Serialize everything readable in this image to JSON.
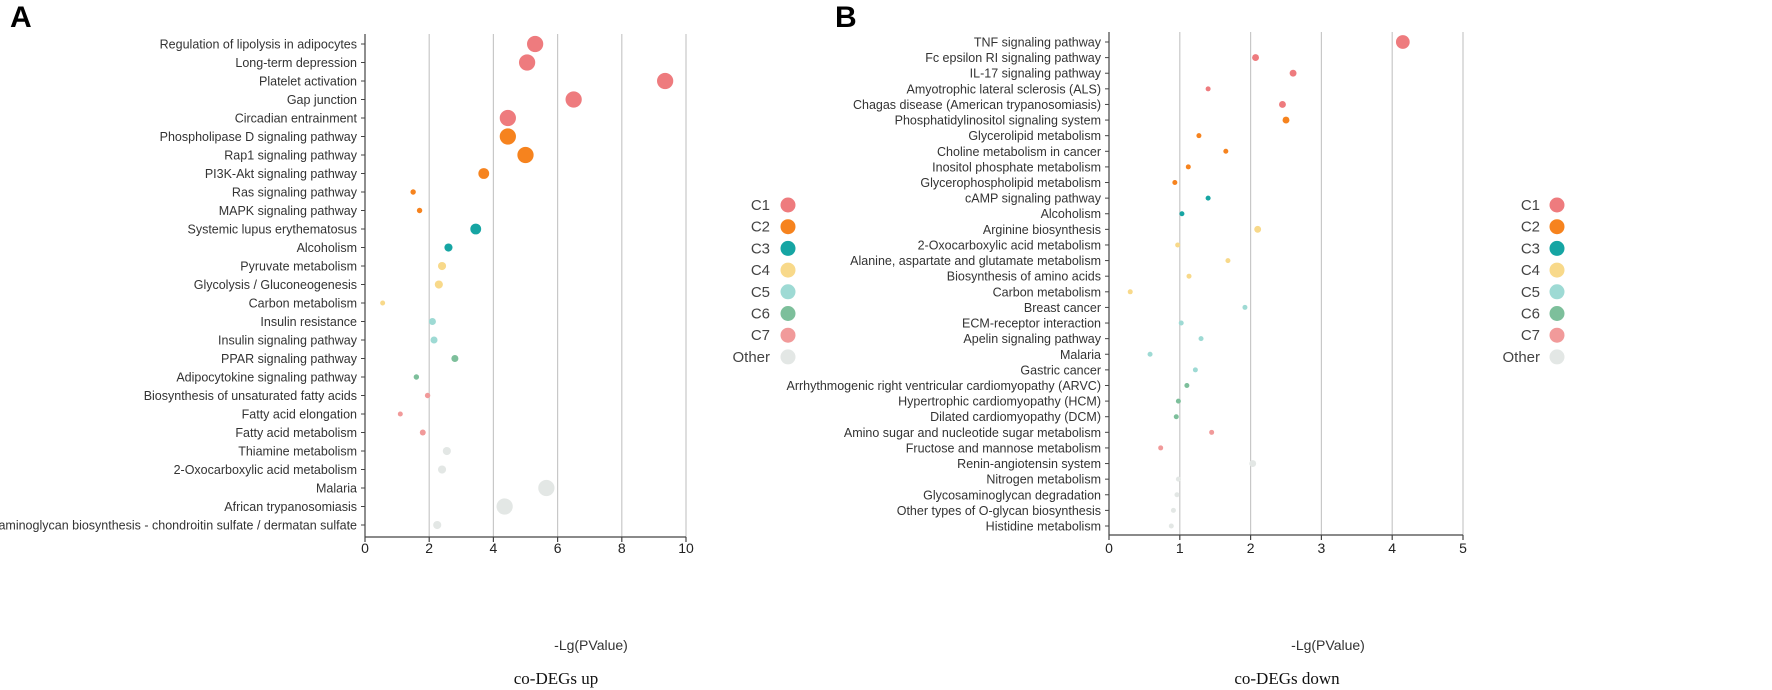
{
  "colors": {
    "C1": "#ee7b7e",
    "C2": "#f6831e",
    "C3": "#16a5a3",
    "C4": "#f8d98a",
    "C5": "#9edad4",
    "C6": "#7dbf9b",
    "C7": "#f19a9a",
    "Other": "#e3e7e5"
  },
  "legend": [
    "C1",
    "C2",
    "C3",
    "C4",
    "C5",
    "C6",
    "C7",
    "Other"
  ],
  "chart_data": [
    {
      "panel": "A",
      "type": "scatter",
      "title": "co-DEGs up",
      "xlabel": "-Lg(PValue)",
      "xlim": [
        0,
        10
      ],
      "xticks": [
        0,
        2,
        4,
        6,
        8,
        10
      ],
      "grid": true,
      "points": [
        {
          "label": "Regulation of lipolysis in adipocytes",
          "x": 5.3,
          "group": "C1",
          "size": 3
        },
        {
          "label": "Long-term depression",
          "x": 5.05,
          "group": "C1",
          "size": 3
        },
        {
          "label": "Platelet activation",
          "x": 9.35,
          "group": "C1",
          "size": 3
        },
        {
          "label": "Gap junction",
          "x": 6.5,
          "group": "C1",
          "size": 3
        },
        {
          "label": "Circadian entrainment",
          "x": 4.45,
          "group": "C1",
          "size": 3
        },
        {
          "label": "Phospholipase D signaling pathway",
          "x": 4.45,
          "group": "C2",
          "size": 3
        },
        {
          "label": "Rap1 signaling pathway",
          "x": 5.0,
          "group": "C2",
          "size": 3
        },
        {
          "label": "PI3K-Akt signaling pathway",
          "x": 3.7,
          "group": "C2",
          "size": 2
        },
        {
          "label": "Ras signaling pathway",
          "x": 1.5,
          "group": "C2",
          "size": 1
        },
        {
          "label": "MAPK signaling pathway",
          "x": 1.7,
          "group": "C2",
          "size": 1
        },
        {
          "label": "Systemic lupus erythematosus",
          "x": 3.45,
          "group": "C3",
          "size": 2
        },
        {
          "label": "Alcoholism",
          "x": 2.6,
          "group": "C3",
          "size": 1.5
        },
        {
          "label": "Pyruvate metabolism",
          "x": 2.4,
          "group": "C4",
          "size": 1.5
        },
        {
          "label": "Glycolysis / Gluconeogenesis",
          "x": 2.3,
          "group": "C4",
          "size": 1.5
        },
        {
          "label": "Carbon metabolism",
          "x": 0.55,
          "group": "C4",
          "size": 0.5
        },
        {
          "label": "Insulin resistance",
          "x": 2.1,
          "group": "C5",
          "size": 1.3
        },
        {
          "label": "Insulin signaling pathway",
          "x": 2.15,
          "group": "C5",
          "size": 1.3
        },
        {
          "label": "PPAR signaling pathway",
          "x": 2.8,
          "group": "C6",
          "size": 1.3
        },
        {
          "label": "Adipocytokine signaling pathway",
          "x": 1.6,
          "group": "C6",
          "size": 1
        },
        {
          "label": "Biosynthesis of unsaturated fatty acids",
          "x": 1.95,
          "group": "C7",
          "size": 1
        },
        {
          "label": "Fatty acid elongation",
          "x": 1.1,
          "group": "C7",
          "size": 0.6
        },
        {
          "label": "Fatty acid metabolism",
          "x": 1.8,
          "group": "C7",
          "size": 1.1
        },
        {
          "label": "Thiamine metabolism",
          "x": 2.55,
          "group": "Other",
          "size": 1.5
        },
        {
          "label": "2-Oxocarboxylic acid metabolism",
          "x": 2.4,
          "group": "Other",
          "size": 1.5
        },
        {
          "label": "Malaria",
          "x": 5.65,
          "group": "Other",
          "size": 3
        },
        {
          "label": "African trypanosomiasis",
          "x": 4.35,
          "group": "Other",
          "size": 3
        },
        {
          "label": "Glycosaminoglycan biosynthesis - chondroitin sulfate / dermatan sulfate",
          "x": 2.25,
          "group": "Other",
          "size": 1.5
        }
      ]
    },
    {
      "panel": "B",
      "type": "scatter",
      "title": "co-DEGs down",
      "xlabel": "-Lg(PValue)",
      "xlim": [
        0,
        5
      ],
      "xticks": [
        0,
        1,
        2,
        3,
        4,
        5
      ],
      "grid": true,
      "points": [
        {
          "label": "TNF signaling pathway",
          "x": 4.15,
          "group": "C1",
          "size": 3
        },
        {
          "label": "Fc epsilon RI signaling pathway",
          "x": 2.07,
          "group": "C1",
          "size": 1.5
        },
        {
          "label": "IL-17 signaling pathway",
          "x": 2.6,
          "group": "C1",
          "size": 1.5
        },
        {
          "label": "Amyotrophic lateral sclerosis (ALS)",
          "x": 1.4,
          "group": "C1",
          "size": 1
        },
        {
          "label": "Chagas disease (American trypanosomiasis)",
          "x": 2.45,
          "group": "C1",
          "size": 1.5
        },
        {
          "label": "Phosphatidylinositol signaling system",
          "x": 2.5,
          "group": "C2",
          "size": 1.5
        },
        {
          "label": "Glycerolipid metabolism",
          "x": 1.27,
          "group": "C2",
          "size": 0.7
        },
        {
          "label": "Choline metabolism in cancer",
          "x": 1.65,
          "group": "C2",
          "size": 1
        },
        {
          "label": "Inositol phosphate metabolism",
          "x": 1.12,
          "group": "C2",
          "size": 0.7
        },
        {
          "label": "Glycerophospholipid metabolism",
          "x": 0.93,
          "group": "C2",
          "size": 0.7
        },
        {
          "label": "cAMP signaling pathway",
          "x": 1.4,
          "group": "C3",
          "size": 1
        },
        {
          "label": "Alcoholism",
          "x": 1.03,
          "group": "C3",
          "size": 0.7
        },
        {
          "label": "Arginine biosynthesis",
          "x": 2.1,
          "group": "C4",
          "size": 1.5
        },
        {
          "label": "2-Oxocarboxylic acid metabolism",
          "x": 0.97,
          "group": "C4",
          "size": 0.7
        },
        {
          "label": "Alanine, aspartate and glutamate metabolism",
          "x": 1.68,
          "group": "C4",
          "size": 1
        },
        {
          "label": "Biosynthesis of amino acids",
          "x": 1.13,
          "group": "C4",
          "size": 0.6
        },
        {
          "label": "Carbon metabolism",
          "x": 0.3,
          "group": "C4",
          "size": 0.6
        },
        {
          "label": "Breast cancer",
          "x": 1.92,
          "group": "C5",
          "size": 1
        },
        {
          "label": "ECM-receptor interaction",
          "x": 1.02,
          "group": "C5",
          "size": 0.6
        },
        {
          "label": "Apelin signaling pathway",
          "x": 1.3,
          "group": "C5",
          "size": 1
        },
        {
          "label": "Malaria",
          "x": 0.58,
          "group": "C5",
          "size": 0.6
        },
        {
          "label": "Gastric cancer",
          "x": 1.22,
          "group": "C5",
          "size": 0.7
        },
        {
          "label": "Arrhythmogenic right ventricular cardiomyopathy (ARVC)",
          "x": 1.1,
          "group": "C6",
          "size": 0.6
        },
        {
          "label": "Hypertrophic cardiomyopathy (HCM)",
          "x": 0.98,
          "group": "C6",
          "size": 0.6
        },
        {
          "label": "Dilated cardiomyopathy (DCM)",
          "x": 0.95,
          "group": "C6",
          "size": 0.6
        },
        {
          "label": "Amino sugar and nucleotide sugar metabolism",
          "x": 1.45,
          "group": "C7",
          "size": 1
        },
        {
          "label": "Fructose and mannose metabolism",
          "x": 0.73,
          "group": "C7",
          "size": 0.7
        },
        {
          "label": "Renin-angiotensin system",
          "x": 2.03,
          "group": "Other",
          "size": 1.5
        },
        {
          "label": "Nitrogen metabolism",
          "x": 0.98,
          "group": "Other",
          "size": 0.5
        },
        {
          "label": "Glycosaminoglycan degradation",
          "x": 0.96,
          "group": "Other",
          "size": 0.7
        },
        {
          "label": "Other types of O-glycan biosynthesis",
          "x": 0.91,
          "group": "Other",
          "size": 0.7
        },
        {
          "label": "Histidine metabolism",
          "x": 0.88,
          "group": "Other",
          "size": 0.7
        }
      ]
    }
  ]
}
